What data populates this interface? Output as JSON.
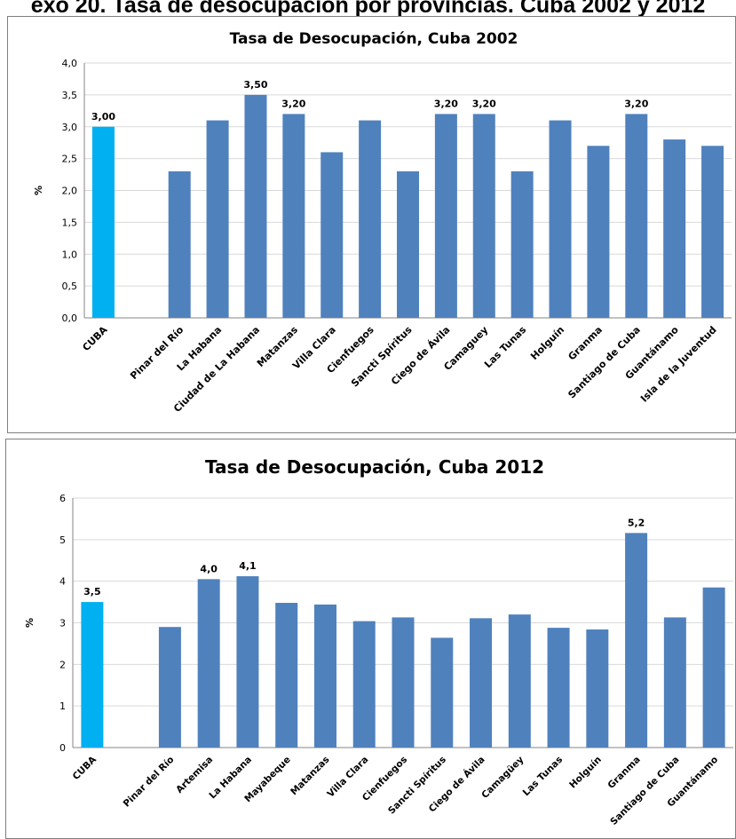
{
  "page_heading": "exo 20. Tasa de desocupación por provincias. Cuba 2002 y 2012",
  "colors": {
    "cuba_bar": "#00b0f0",
    "province_bar": "#4f81bd",
    "grid": "#d9d9d9",
    "axis": "#868686"
  },
  "chart_data": [
    {
      "type": "bar",
      "title": "Tasa de Desocupación, Cuba 2002",
      "ylabel": "%",
      "xlabel": "",
      "ylim": [
        0,
        4
      ],
      "ytick_step": 0.5,
      "ytick_labels": [
        "0,0",
        "0,5",
        "1,0",
        "1,5",
        "2,0",
        "2,5",
        "3,0",
        "3,5",
        "4,0"
      ],
      "grid": true,
      "categories": [
        "CUBA",
        "",
        "Pinar del Río",
        "La Habana",
        "Ciudad de La Habana",
        "Matanzas",
        "Villa Clara",
        "Cienfuegos",
        "Sancti Spíritus",
        "Ciego de Ávila",
        "Camaguey",
        "Las Tunas",
        "Holguín",
        "Granma",
        "Santiago de Cuba",
        "Guantánamo",
        "Isla de la Juventud"
      ],
      "values": [
        3.0,
        null,
        2.3,
        3.1,
        3.5,
        3.2,
        2.6,
        3.1,
        2.3,
        3.2,
        3.2,
        2.3,
        3.1,
        2.7,
        3.2,
        2.8,
        2.7
      ],
      "data_labels": [
        "3,00",
        "",
        "",
        "",
        "3,50",
        "3,20",
        "",
        "",
        "",
        "3,20",
        "3,20",
        "",
        "",
        "",
        "3,20",
        "",
        ""
      ]
    },
    {
      "type": "bar",
      "title": "Tasa de Desocupación, Cuba 2012",
      "ylabel": "%",
      "xlabel": "",
      "ylim": [
        0,
        6
      ],
      "ytick_step": 1,
      "ytick_labels": [
        "0",
        "1",
        "2",
        "3",
        "4",
        "5",
        "6"
      ],
      "grid": true,
      "categories": [
        "CUBA",
        "",
        "Pinar del Río",
        "Artemisa",
        "La Habana",
        "Mayabeque",
        "Matanzas",
        "Villa Clara",
        "Cienfuegos",
        "Sancti Spíritus",
        "Ciego de Ávila",
        "Camagüey",
        "Las Tunas",
        "Holguín",
        "Granma",
        "Santiago de Cuba",
        "Guantánamo"
      ],
      "values": [
        3.5,
        null,
        2.9,
        4.05,
        4.12,
        3.48,
        3.44,
        3.04,
        3.13,
        2.64,
        3.11,
        3.2,
        2.88,
        2.84,
        5.16,
        3.13,
        3.85
      ],
      "data_labels": [
        "3,5",
        "",
        "",
        "4,0",
        "4,1",
        "",
        "",
        "",
        "",
        "",
        "",
        "",
        "",
        "",
        "5,2",
        "",
        ""
      ]
    }
  ]
}
